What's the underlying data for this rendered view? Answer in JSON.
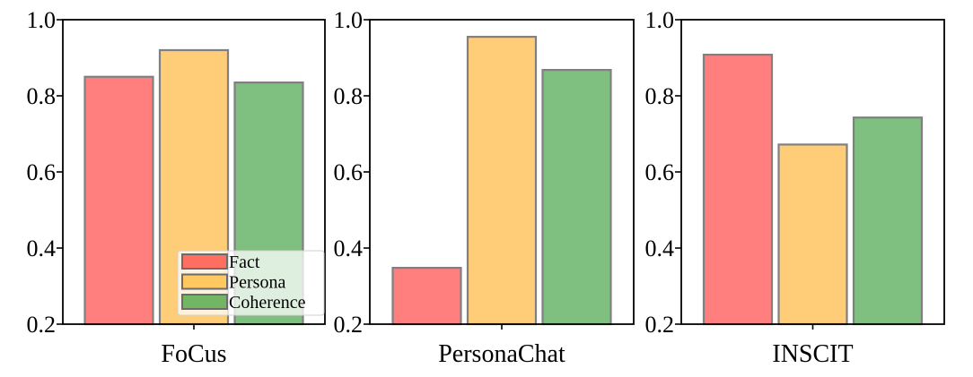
{
  "chart_data": [
    {
      "type": "bar",
      "categories": [
        "FoCus"
      ],
      "series": [
        {
          "name": "Fact",
          "values": [
            0.85
          ]
        },
        {
          "name": "Persona",
          "values": [
            0.92
          ]
        },
        {
          "name": "Coherence",
          "values": [
            0.835
          ]
        }
      ],
      "ylim": [
        0.2,
        1.0
      ],
      "yticks": [
        "0.2",
        "0.4",
        "0.6",
        "0.8",
        "1.0"
      ],
      "grid": false,
      "legend": "lower-right"
    },
    {
      "type": "bar",
      "categories": [
        "PersonaChat"
      ],
      "series": [
        {
          "name": "Fact",
          "values": [
            0.348
          ]
        },
        {
          "name": "Persona",
          "values": [
            0.955
          ]
        },
        {
          "name": "Coherence",
          "values": [
            0.868
          ]
        }
      ],
      "ylim": [
        0.2,
        1.0
      ],
      "yticks": [
        "0.2",
        "0.4",
        "0.6",
        "0.8",
        "1.0"
      ],
      "grid": false
    },
    {
      "type": "bar",
      "categories": [
        "INSCIT"
      ],
      "series": [
        {
          "name": "Fact",
          "values": [
            0.908
          ]
        },
        {
          "name": "Persona",
          "values": [
            0.672
          ]
        },
        {
          "name": "Coherence",
          "values": [
            0.743
          ]
        }
      ],
      "ylim": [
        0.2,
        1.0
      ],
      "yticks": [
        "0.2",
        "0.4",
        "0.6",
        "0.8",
        "1.0"
      ],
      "grid": false
    }
  ],
  "legend": {
    "entries": [
      {
        "name": "Fact",
        "color": "#ff6f61"
      },
      {
        "name": "Persona",
        "color": "#ffc861"
      },
      {
        "name": "Coherence",
        "color": "#72b562"
      }
    ]
  },
  "colors": {
    "bar": [
      "#ff7f7f",
      "#ffcc77",
      "#7fbf7f"
    ],
    "bar_edge": "#808080"
  }
}
